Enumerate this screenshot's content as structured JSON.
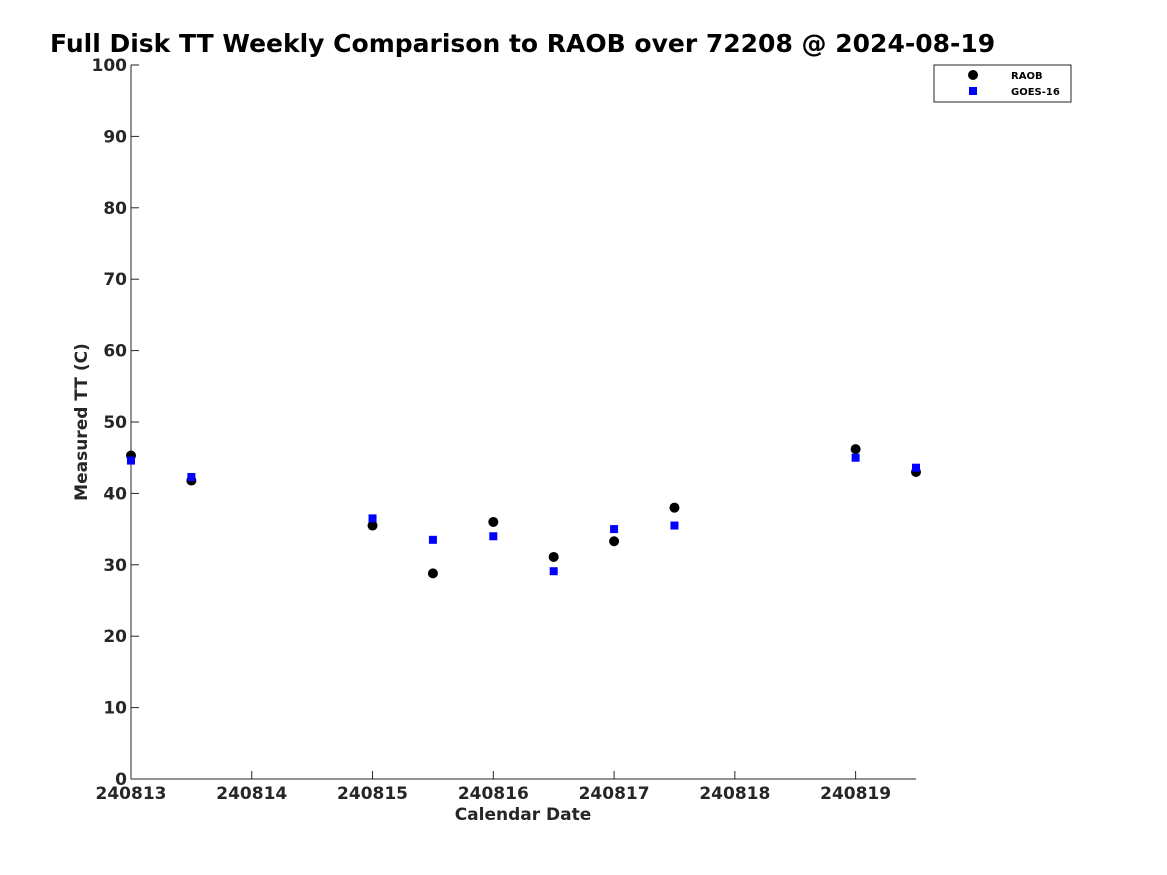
{
  "chart_data": {
    "type": "scatter",
    "title": "Full Disk TT Weekly Comparison to RAOB over 72208 @ 2024-08-19",
    "xlabel": "Calendar Date",
    "ylabel": "Measured TT (C)",
    "xlim": [
      "2024-08-13",
      "2024-08-19 12:00"
    ],
    "ylim": [
      0,
      100
    ],
    "x_tick_labels": [
      "240813",
      "240814",
      "240815",
      "240816",
      "240817",
      "240818",
      "240819"
    ],
    "y_ticks": [
      0,
      10,
      20,
      30,
      40,
      50,
      60,
      70,
      80,
      90,
      100
    ],
    "grid": false,
    "legend_position": "top-right",
    "series": [
      {
        "name": "RAOB",
        "marker": "circle",
        "color": "#000000",
        "points": [
          {
            "x": "2024-08-13 00:00",
            "y": 45.3
          },
          {
            "x": "2024-08-13 12:00",
            "y": 41.8
          },
          {
            "x": "2024-08-15 00:00",
            "y": 35.5
          },
          {
            "x": "2024-08-15 12:00",
            "y": 28.8
          },
          {
            "x": "2024-08-16 00:00",
            "y": 36.0
          },
          {
            "x": "2024-08-16 12:00",
            "y": 31.1
          },
          {
            "x": "2024-08-17 00:00",
            "y": 33.3
          },
          {
            "x": "2024-08-17 12:00",
            "y": 38.0
          },
          {
            "x": "2024-08-19 00:00",
            "y": 46.2
          },
          {
            "x": "2024-08-19 12:00",
            "y": 43.0
          }
        ]
      },
      {
        "name": "GOES-16",
        "marker": "square",
        "color": "#0000ff",
        "points": [
          {
            "x": "2024-08-13 00:00",
            "y": 44.6
          },
          {
            "x": "2024-08-13 12:00",
            "y": 42.3
          },
          {
            "x": "2024-08-15 00:00",
            "y": 36.5
          },
          {
            "x": "2024-08-15 12:00",
            "y": 33.5
          },
          {
            "x": "2024-08-16 00:00",
            "y": 34.0
          },
          {
            "x": "2024-08-16 12:00",
            "y": 29.1
          },
          {
            "x": "2024-08-17 00:00",
            "y": 35.0
          },
          {
            "x": "2024-08-17 12:00",
            "y": 35.5
          },
          {
            "x": "2024-08-19 00:00",
            "y": 45.0
          },
          {
            "x": "2024-08-19 12:00",
            "y": 43.6
          }
        ]
      }
    ]
  }
}
